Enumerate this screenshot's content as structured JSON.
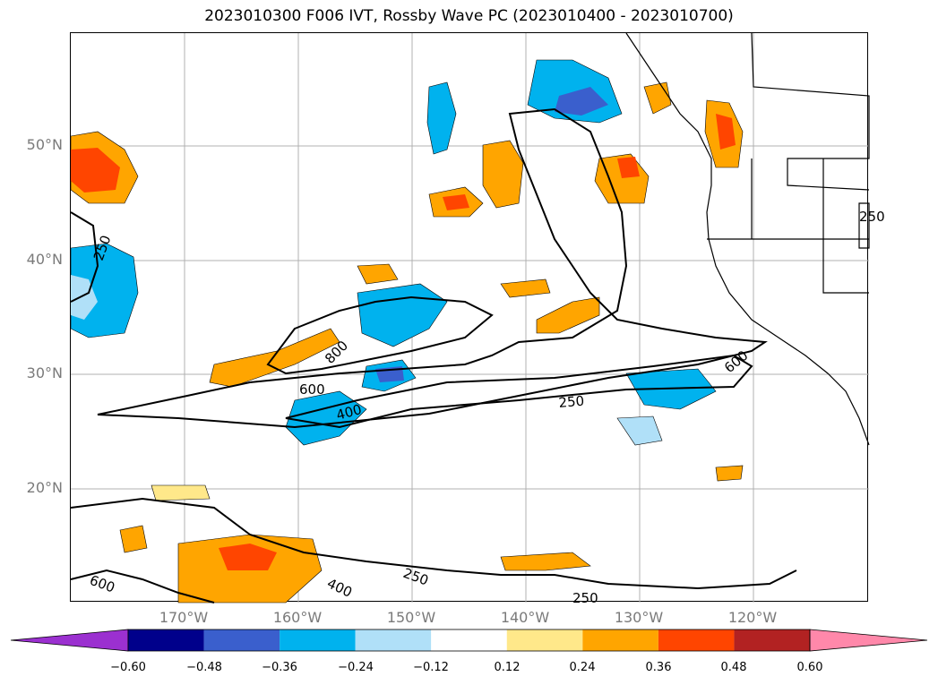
{
  "title": "2023010300 F006 IVT, Rossby Wave PC (2023010400 - 2023010700)",
  "latitude_labels": [
    "50°N",
    "40°N",
    "30°N",
    "20°N"
  ],
  "longitude_labels": [
    "170°W",
    "160°W",
    "150°W",
    "140°W",
    "130°W",
    "120°W"
  ],
  "contour_labels": [
    "250",
    "600",
    "800",
    "400",
    "250",
    "600",
    "250",
    "400",
    "250",
    "600",
    "250"
  ],
  "colorbar": {
    "ticks": [
      "−0.60",
      "−0.48",
      "−0.36",
      "−0.24",
      "−0.12",
      "0.12",
      "0.24",
      "0.36",
      "0.48",
      "0.60"
    ],
    "colors": [
      "#9b30d0",
      "#00008b",
      "#3a5fcd",
      "#00b2ee",
      "#b0e0f8",
      "#ffffff",
      "#ffe88a",
      "#ffa500",
      "#ff4500",
      "#b22222",
      "#ff88aa"
    ]
  },
  "colors": {
    "ocean": "#ffffff",
    "coastline": "#000000",
    "grid": "#b0b0b0",
    "contour": "#000000"
  }
}
